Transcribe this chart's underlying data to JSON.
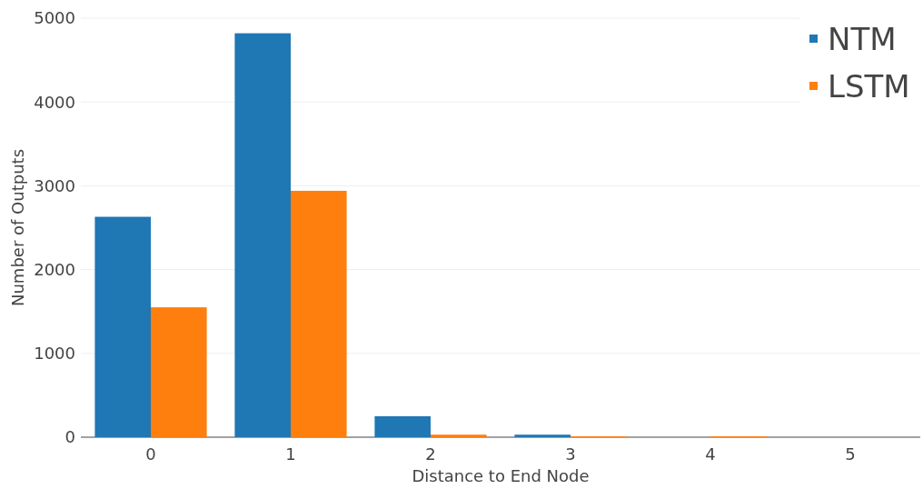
{
  "chart_data": {
    "type": "bar",
    "xlabel": "Distance to End Node",
    "ylabel": "Number of Outputs",
    "categories": [
      "0",
      "1",
      "2",
      "3",
      "4",
      "5"
    ],
    "series": [
      {
        "name": "NTM",
        "color": "#1f77b4",
        "values": [
          2630,
          4820,
          250,
          30,
          0,
          0
        ]
      },
      {
        "name": "LSTM",
        "color": "#ff7f0e",
        "values": [
          1550,
          2940,
          30,
          10,
          10,
          0
        ]
      }
    ],
    "ylim": [
      0,
      5000
    ],
    "yticks": [
      0,
      1000,
      2000,
      3000,
      4000,
      5000
    ],
    "grid": "y",
    "legend": "top right"
  }
}
